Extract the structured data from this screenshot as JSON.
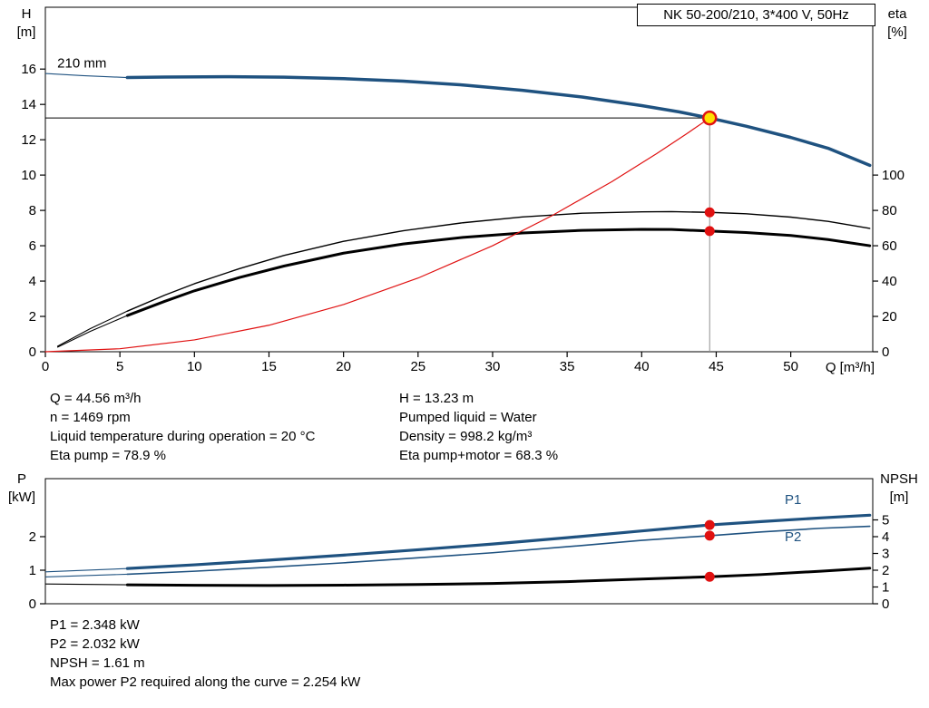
{
  "title_box": {
    "text": "NK 50-200/210, 3*400 V, 50Hz"
  },
  "hq_chart": {
    "ylabel_left_line1": "H",
    "ylabel_left_line2": "[m]",
    "ylabel_right_line1": "eta",
    "ylabel_right_line2": "[%]",
    "xlabel": "Q [m³/h]"
  },
  "pn_chart": {
    "ylabel_left_line1": "P",
    "ylabel_left_line2": "[kW]",
    "ylabel_right_line1": "NPSH",
    "ylabel_right_line2": "[m]"
  },
  "info_top_left": [
    "Q = 44.56 m³/h",
    "n = 1469 rpm",
    "Liquid temperature during operation = 20 °C",
    "Eta pump = 78.9 %"
  ],
  "info_top_right": [
    "H = 13.23 m",
    "Pumped liquid = Water",
    "Density = 998.2 kg/m³",
    "Eta pump+motor = 68.3 %"
  ],
  "info_bottom": [
    "P1 = 2.348 kW",
    "P2 = 2.032 kW",
    "NPSH = 1.61 m",
    "Max power P2 required along the curve = 2.254 kW"
  ],
  "colors": {
    "curve_blue": "#1f5280",
    "curve_black": "#000000",
    "curve_red": "#e01111",
    "duty_yellow": "#ffe000",
    "guide_grey": "#909090"
  },
  "chart_data": [
    {
      "id": "hq",
      "type": "line",
      "title": "NK 50-200/210, 3*400 V, 50Hz",
      "xlabel": "Q [m³/h]",
      "ylabel_left": "H [m]",
      "ylabel_right": "eta [%]",
      "xlim": [
        0,
        55.5
      ],
      "ylim_left": [
        0,
        19.5
      ],
      "ylim_right": [
        0,
        195
      ],
      "xticks": [
        0,
        5,
        10,
        15,
        20,
        25,
        30,
        35,
        40,
        45,
        50
      ],
      "yticks_left": [
        0,
        2,
        4,
        6,
        8,
        10,
        12,
        14,
        16
      ],
      "yticks_right": [
        0,
        20,
        40,
        60,
        80,
        100
      ],
      "annotations": [
        {
          "text": "210 mm",
          "x": 0.8,
          "y": 16.1,
          "axis": "left",
          "color": "#000000"
        }
      ],
      "guides": [
        {
          "name": "duty-head-line",
          "axis": "left",
          "color": "#000000",
          "width": 1,
          "points": [
            [
              0,
              13.23
            ],
            [
              44.56,
              13.23
            ]
          ]
        },
        {
          "name": "duty-flow-line",
          "axis": "left",
          "color": "#909090",
          "width": 1,
          "points": [
            [
              44.56,
              0
            ],
            [
              44.56,
              13.23
            ]
          ]
        }
      ],
      "series": [
        {
          "name": "head-curve-210mm",
          "axis": "left",
          "color": "#1f5280",
          "width": 3.5,
          "lead": [
            [
              0,
              15.75
            ],
            [
              2.5,
              15.63
            ],
            [
              5.5,
              15.52
            ]
          ],
          "points": [
            [
              5.5,
              15.52
            ],
            [
              8,
              15.55
            ],
            [
              12,
              15.57
            ],
            [
              16,
              15.54
            ],
            [
              20,
              15.46
            ],
            [
              24,
              15.32
            ],
            [
              28,
              15.1
            ],
            [
              32,
              14.8
            ],
            [
              36,
              14.42
            ],
            [
              40,
              13.93
            ],
            [
              42.5,
              13.58
            ],
            [
              44.56,
              13.23
            ],
            [
              47,
              12.77
            ],
            [
              50,
              12.13
            ],
            [
              52.5,
              11.52
            ],
            [
              55.3,
              10.55
            ]
          ]
        },
        {
          "name": "eta-pump-curve",
          "axis": "right",
          "color": "#000000",
          "width": 1.4,
          "lead": [
            [
              0.8,
              3
            ],
            [
              3,
              13
            ],
            [
              5.5,
              23
            ]
          ],
          "points": [
            [
              5.5,
              23
            ],
            [
              8,
              32
            ],
            [
              10,
              38.5
            ],
            [
              13,
              47
            ],
            [
              16,
              54.5
            ],
            [
              20,
              62.5
            ],
            [
              24,
              68.5
            ],
            [
              28,
              73
            ],
            [
              32,
              76.3
            ],
            [
              36,
              78.4
            ],
            [
              40,
              79.2
            ],
            [
              42,
              79.3
            ],
            [
              44.56,
              78.9
            ],
            [
              47,
              78.1
            ],
            [
              50,
              76.2
            ],
            [
              52.5,
              73.8
            ],
            [
              55.3,
              69.8
            ]
          ]
        },
        {
          "name": "eta-pump-motor-curve",
          "axis": "right",
          "color": "#000000",
          "width": 3,
          "lead": [
            [
              0.8,
              2.5
            ],
            [
              3,
              11.5
            ],
            [
              5.5,
              20.5
            ]
          ],
          "points": [
            [
              5.5,
              20.5
            ],
            [
              8,
              28.5
            ],
            [
              10,
              34.5
            ],
            [
              13,
              42
            ],
            [
              16,
              48.5
            ],
            [
              20,
              55.8
            ],
            [
              24,
              61
            ],
            [
              28,
              64.7
            ],
            [
              32,
              67.2
            ],
            [
              36,
              68.7
            ],
            [
              40,
              69.3
            ],
            [
              42,
              69.2
            ],
            [
              44.56,
              68.3
            ],
            [
              47,
              67.5
            ],
            [
              50,
              65.8
            ],
            [
              52.5,
              63.5
            ],
            [
              55.3,
              60
            ]
          ]
        },
        {
          "name": "duty-parabola",
          "axis": "left",
          "color": "#e01111",
          "width": 1.2,
          "points": [
            [
              0,
              0
            ],
            [
              5,
              0.17
            ],
            [
              10,
              0.67
            ],
            [
              15,
              1.5
            ],
            [
              20,
              2.67
            ],
            [
              25,
              4.17
            ],
            [
              30,
              6
            ],
            [
              34,
              7.71
            ],
            [
              38,
              9.63
            ],
            [
              41,
              11.21
            ],
            [
              43,
              12.33
            ],
            [
              44.56,
              13.23
            ]
          ]
        }
      ],
      "markers": [
        {
          "name": "duty-point",
          "x": 44.56,
          "y": 13.23,
          "axis": "left",
          "r": 7,
          "fill": "#ffe000",
          "stroke": "#e01111",
          "sw": 2.5,
          "interactable": "true"
        },
        {
          "name": "eta-pump-duty-point",
          "x": 44.56,
          "y": 78.9,
          "axis": "right",
          "r": 5,
          "fill": "#e01111",
          "stroke": "#e01111",
          "sw": 1,
          "interactable": "false"
        },
        {
          "name": "eta-pump-motor-duty-point",
          "x": 44.56,
          "y": 68.3,
          "axis": "right",
          "r": 5,
          "fill": "#e01111",
          "stroke": "#e01111",
          "sw": 1,
          "interactable": "false"
        }
      ]
    },
    {
      "id": "pn",
      "type": "line",
      "title": "",
      "xlabel": "Q [m³/h]",
      "ylabel_left": "P [kW]",
      "ylabel_right": "NPSH [m]",
      "xlim": [
        0,
        55.5
      ],
      "ylim_left": [
        0,
        3.73
      ],
      "ylim_right": [
        0,
        7.46
      ],
      "xticks": [],
      "yticks_left": [
        0,
        1,
        2
      ],
      "yticks_right": [
        0,
        1,
        2,
        3,
        4,
        5
      ],
      "annotations": [
        {
          "text": "P1",
          "x": 49.6,
          "y": 2.97,
          "axis": "left",
          "color": "#1f5280"
        },
        {
          "text": "P2",
          "x": 49.6,
          "y": 1.86,
          "axis": "left",
          "color": "#1f5280"
        }
      ],
      "guides": [],
      "series": [
        {
          "name": "p1-curve",
          "axis": "left",
          "color": "#1f5280",
          "width": 3.2,
          "lead": [
            [
              0,
              0.95
            ],
            [
              5.5,
              1.05
            ]
          ],
          "points": [
            [
              5.5,
              1.05
            ],
            [
              10,
              1.16
            ],
            [
              15,
              1.3
            ],
            [
              20,
              1.45
            ],
            [
              25,
              1.61
            ],
            [
              30,
              1.78
            ],
            [
              35,
              1.97
            ],
            [
              40,
              2.17
            ],
            [
              44.56,
              2.35
            ],
            [
              48,
              2.45
            ],
            [
              52,
              2.56
            ],
            [
              55.3,
              2.64
            ]
          ]
        },
        {
          "name": "p2-curve",
          "axis": "left",
          "color": "#1f5280",
          "width": 1.6,
          "lead": [
            [
              0,
              0.8
            ],
            [
              5.5,
              0.88
            ]
          ],
          "points": [
            [
              5.5,
              0.88
            ],
            [
              10,
              0.97
            ],
            [
              15,
              1.09
            ],
            [
              20,
              1.22
            ],
            [
              25,
              1.37
            ],
            [
              30,
              1.52
            ],
            [
              35,
              1.7
            ],
            [
              40,
              1.89
            ],
            [
              44.56,
              2.03
            ],
            [
              48,
              2.14
            ],
            [
              52,
              2.25
            ],
            [
              55.3,
              2.31
            ]
          ]
        },
        {
          "name": "npsh-curve",
          "axis": "right",
          "color": "#000000",
          "width": 3,
          "lead": [
            [
              0,
              1.18
            ],
            [
              5.5,
              1.13
            ]
          ],
          "points": [
            [
              5.5,
              1.13
            ],
            [
              10,
              1.1
            ],
            [
              15,
              1.09
            ],
            [
              20,
              1.11
            ],
            [
              25,
              1.15
            ],
            [
              30,
              1.21
            ],
            [
              35,
              1.32
            ],
            [
              40,
              1.47
            ],
            [
              44.56,
              1.61
            ],
            [
              48,
              1.74
            ],
            [
              52,
              1.94
            ],
            [
              55.3,
              2.12
            ]
          ]
        }
      ],
      "markers": [
        {
          "name": "p1-duty-point",
          "x": 44.56,
          "y": 2.348,
          "axis": "left",
          "r": 5,
          "fill": "#e01111",
          "stroke": "#e01111",
          "sw": 1,
          "interactable": "false"
        },
        {
          "name": "p2-duty-point",
          "x": 44.56,
          "y": 2.032,
          "axis": "left",
          "r": 5,
          "fill": "#e01111",
          "stroke": "#e01111",
          "sw": 1,
          "interactable": "false"
        },
        {
          "name": "npsh-duty-point",
          "x": 44.56,
          "y": 1.61,
          "axis": "right",
          "r": 5,
          "fill": "#e01111",
          "stroke": "#e01111",
          "sw": 1,
          "interactable": "false"
        }
      ]
    }
  ]
}
